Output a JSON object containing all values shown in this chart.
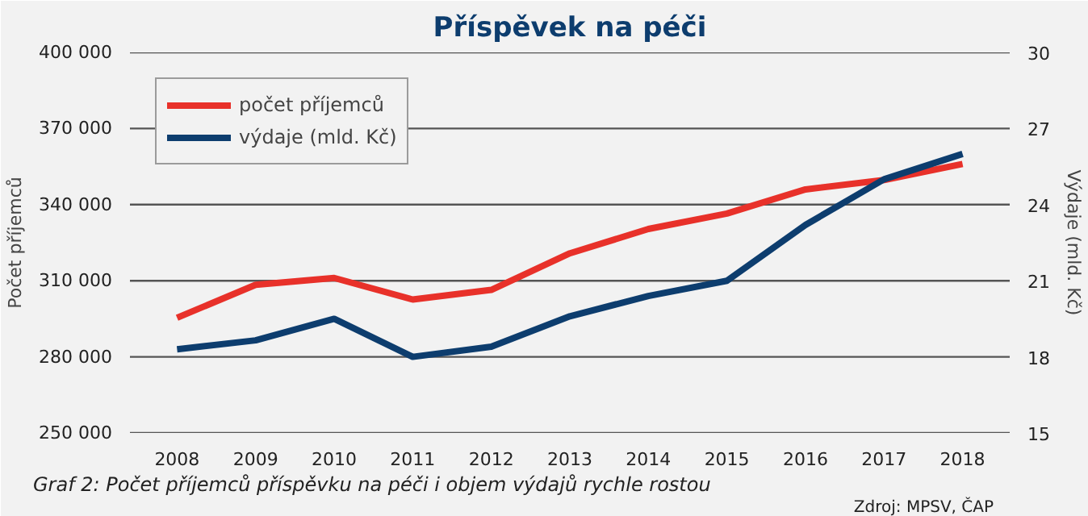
{
  "chart_data": {
    "type": "line",
    "title": "Příspěvek na péči",
    "ylabel": "Počet příjemců",
    "y2label": "Výdaje (mld. Kč)",
    "categories": [
      "2008",
      "2009",
      "2010",
      "2011",
      "2012",
      "2013",
      "2014",
      "2015",
      "2016",
      "2017",
      "2018"
    ],
    "series": [
      {
        "name": "počet příjemců",
        "color": "#e8312a",
        "values": [
          295400,
          308400,
          311100,
          302600,
          306400,
          320800,
          330400,
          336500,
          346000,
          349700,
          356000
        ]
      },
      {
        "name": "výdaje (mld. Kč)",
        "color": "#0d3d6e",
        "axis": "y2",
        "values": [
          18.3,
          18.65,
          19.5,
          18.0,
          18.4,
          19.6,
          20.4,
          21.0,
          23.2,
          25.0,
          26.0
        ]
      }
    ],
    "ylim": [
      250000,
      400000
    ],
    "yticks": [
      {
        "value": 250000,
        "label": "250 000"
      },
      {
        "value": 280000,
        "label": "280 000"
      },
      {
        "value": 310000,
        "label": "310 000"
      },
      {
        "value": 340000,
        "label": "340 000"
      },
      {
        "value": 370000,
        "label": "370 000"
      },
      {
        "value": 400000,
        "label": "400 000"
      }
    ],
    "y2lim": [
      15,
      30
    ],
    "y2ticks": [
      15,
      18,
      21,
      24,
      27,
      30
    ],
    "grid": "y",
    "legend": "top left",
    "marker": "none",
    "line_style": "solid",
    "annotations": [
      "Graf 2: Počet příjemců příspěvku na péči i objem výdajů rychle rostou",
      "Zdroj: MPSV, ČAP"
    ]
  }
}
